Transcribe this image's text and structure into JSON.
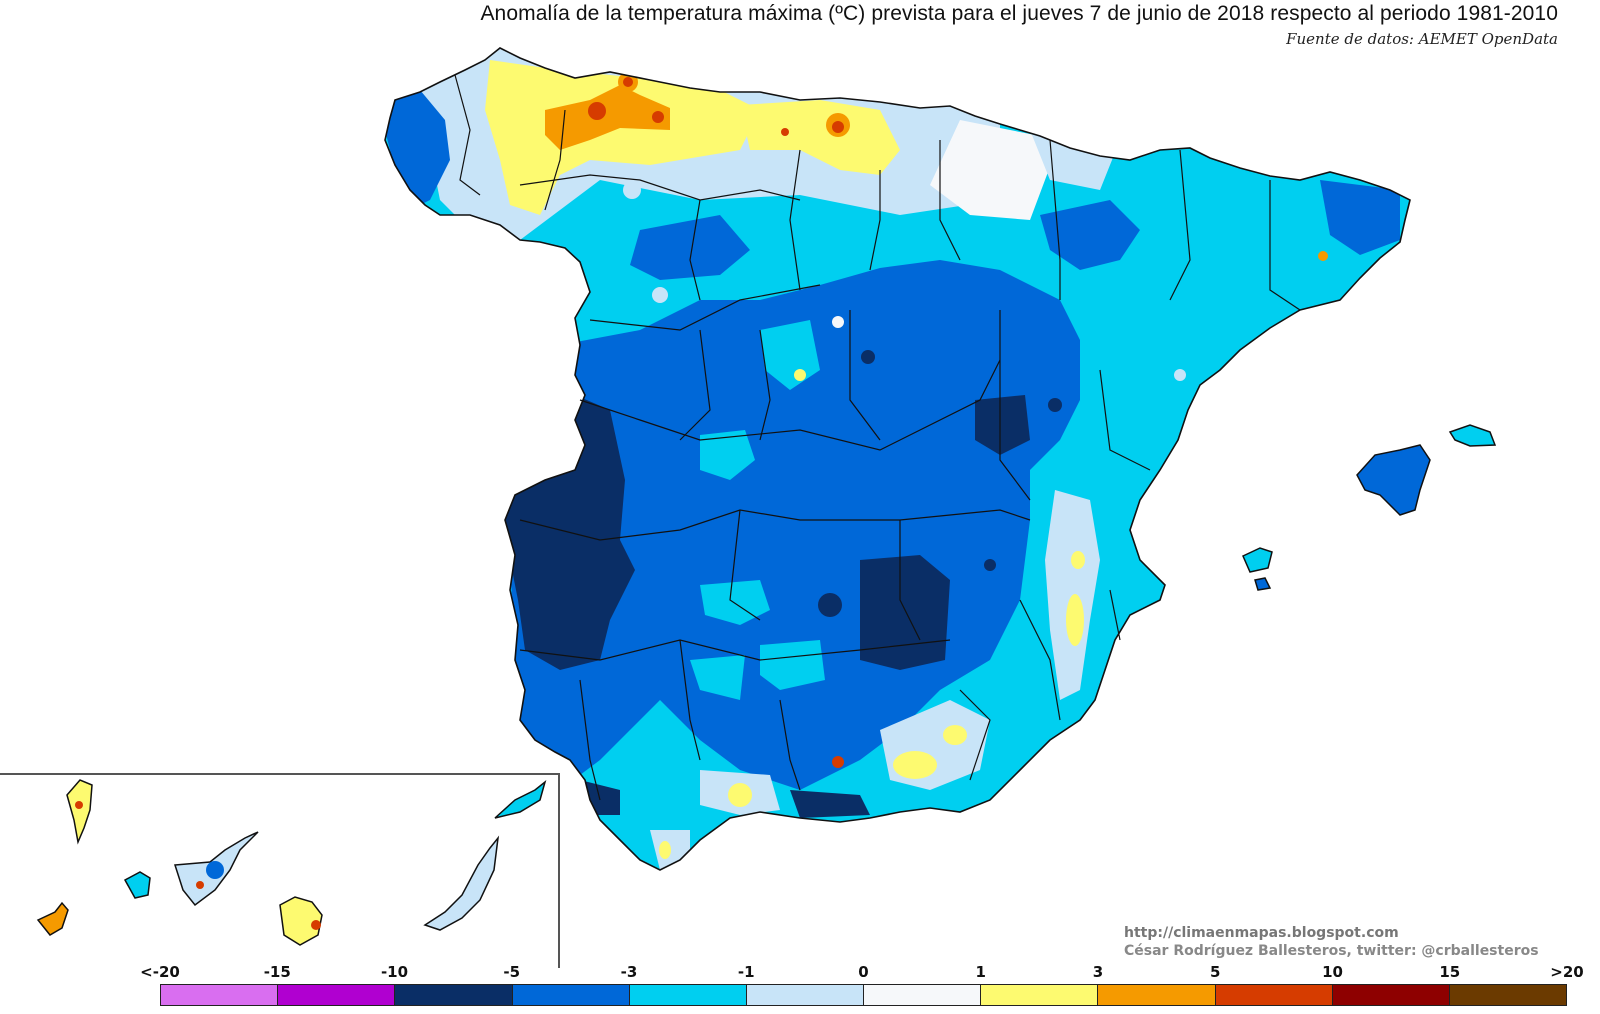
{
  "header": {
    "title": "Anomalía de la temperatura máxima (ºC) prevista para el jueves 7 de junio de 2018 respecto al periodo 1981-2010",
    "source": "Fuente de datos: AEMET OpenData"
  },
  "credits": {
    "url": "http://climaenmapas.blogspot.com",
    "author": "César Rodríguez Ballesteros, twitter: @crballesteros"
  },
  "legend": {
    "ticks": [
      "<-20",
      "-15",
      "-10",
      "-5",
      "-3",
      "-1",
      "0",
      "1",
      "3",
      "5",
      "10",
      "15",
      ">20"
    ],
    "colors": [
      "#d96ef0",
      "#b000d0",
      "#0a2e66",
      "#0068d8",
      "#00cff0",
      "#c8e4f8",
      "#f6f8fa",
      "#fdfa70",
      "#f59a00",
      "#d63c00",
      "#8e0000",
      "#6b3a00"
    ]
  },
  "map": {
    "region": "España",
    "inset_region": "Canarias"
  }
}
